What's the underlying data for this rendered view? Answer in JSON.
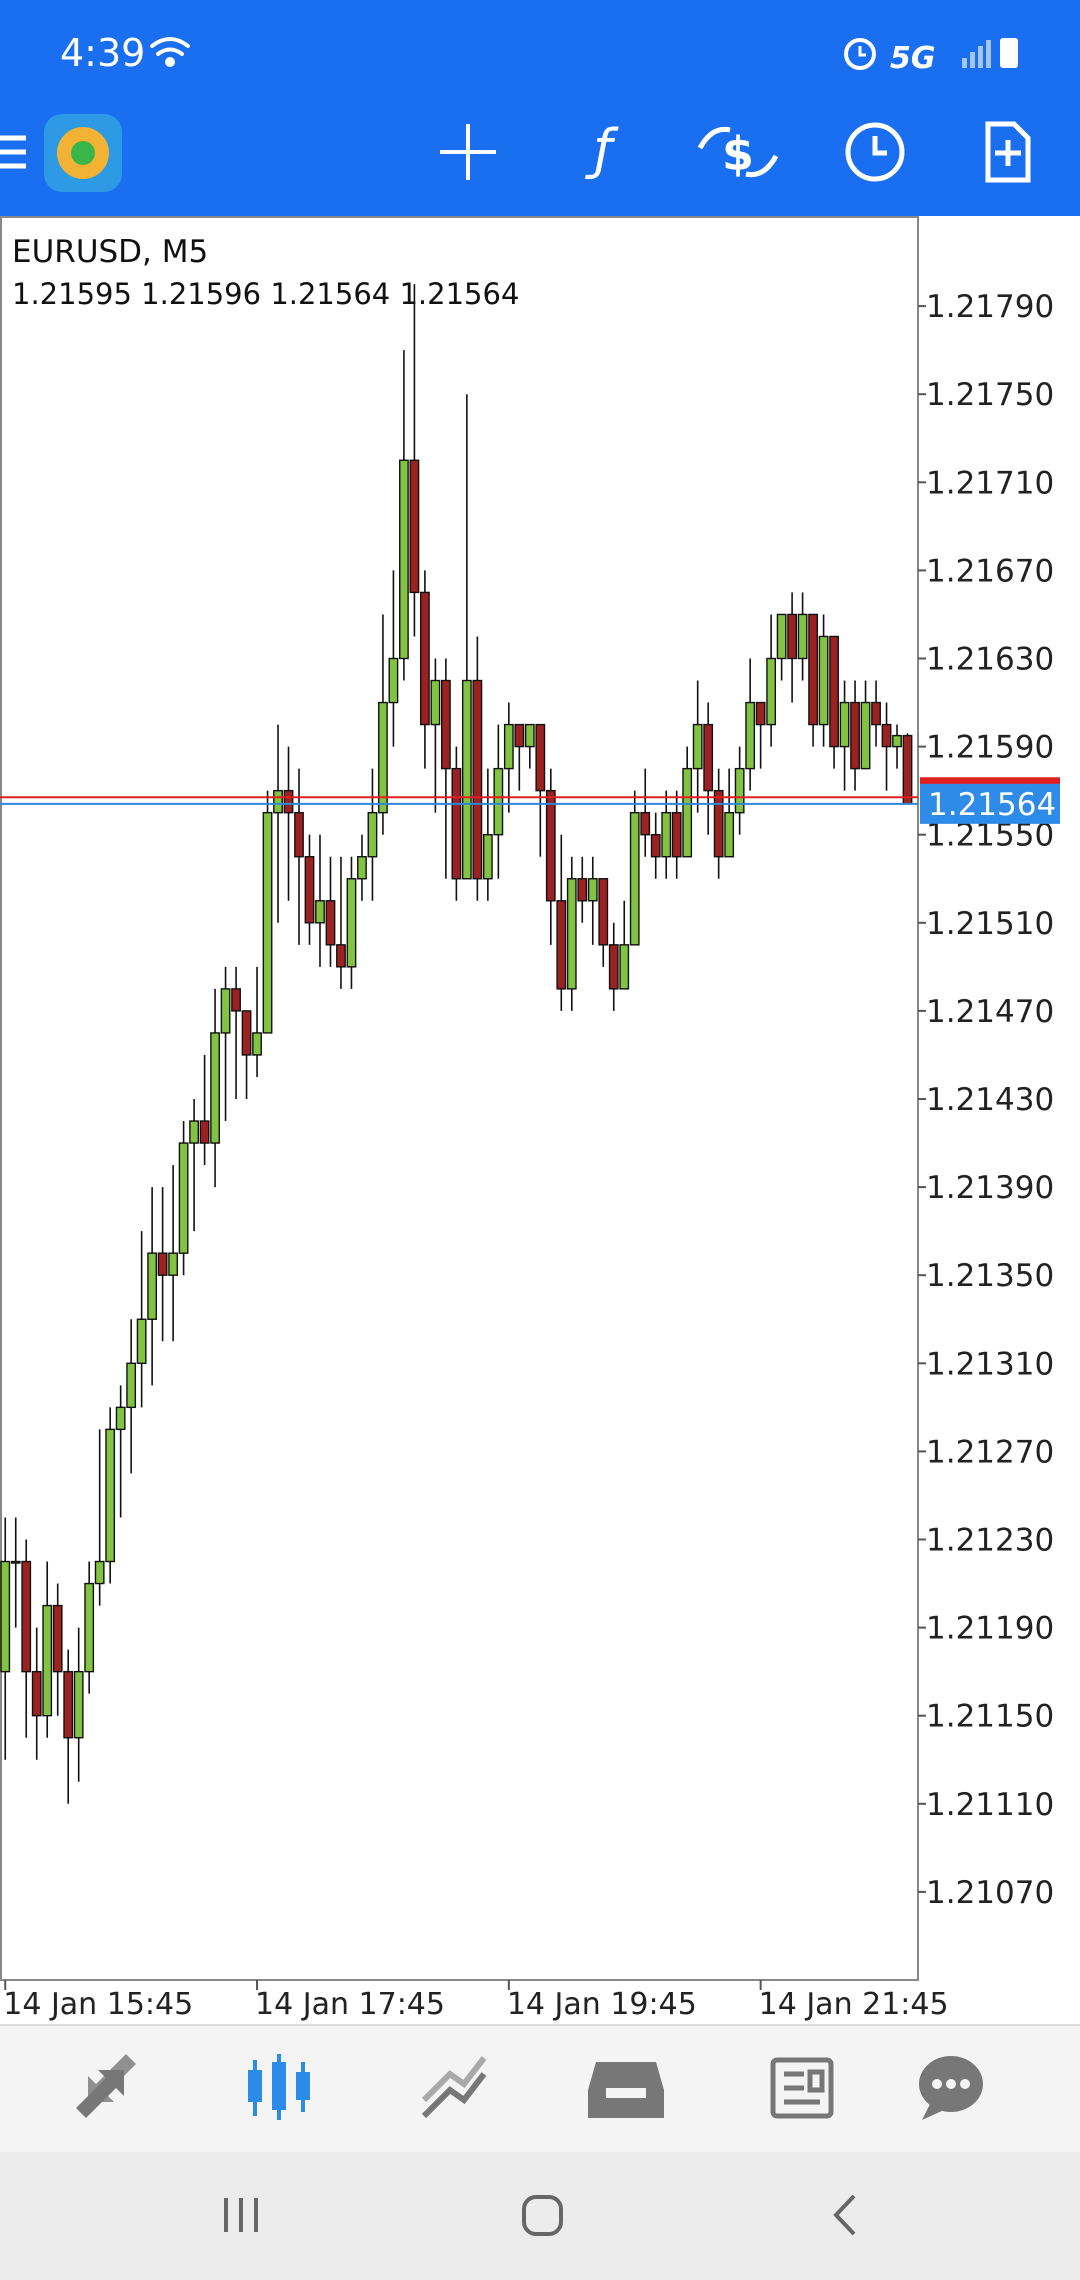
{
  "status_bar": {
    "time": "4:39",
    "network": "5G"
  },
  "chart_data": {
    "type": "candlestick",
    "title": "EURUSD, M5",
    "open": [
      1.2117,
      1.2122,
      1.2122,
      1.2117,
      1.2115,
      1.212,
      1.2117,
      1.2114,
      1.2117,
      1.2121,
      1.2122,
      1.2128,
      1.2129,
      1.2131,
      1.2133,
      1.2136,
      1.2135,
      1.2136,
      1.2141,
      1.2142,
      1.2141,
      1.2146,
      1.2148,
      1.2147,
      1.2145,
      1.2146,
      1.2156,
      1.2157,
      1.2156,
      1.2154,
      1.2151,
      1.2152,
      1.215,
      1.2149,
      1.2153,
      1.2154,
      1.2156,
      1.2161,
      1.2163,
      1.2172,
      1.2166,
      1.216,
      1.2162,
      1.2158,
      1.2153,
      1.2162,
      1.2153,
      1.2155,
      1.2158,
      1.216,
      1.2159,
      1.216,
      1.2157,
      1.2152,
      1.2148,
      1.2153,
      1.2152,
      1.2153,
      1.215,
      1.2148,
      1.215,
      1.2156,
      1.2155,
      1.2154,
      1.2156,
      1.2154,
      1.2158,
      1.216,
      1.2157,
      1.2154,
      1.2156,
      1.2158,
      1.2161,
      1.216,
      1.2163,
      1.2165,
      1.2163,
      1.2165,
      1.216,
      1.2164,
      1.2159,
      1.2161,
      1.2158,
      1.2161,
      1.216,
      1.2159,
      1.21595
    ],
    "high": [
      1.2124,
      1.2124,
      1.2123,
      1.2119,
      1.2122,
      1.2121,
      1.2118,
      1.2119,
      1.2122,
      1.2128,
      1.2129,
      1.213,
      1.2133,
      1.2137,
      1.2139,
      1.2139,
      1.214,
      1.2142,
      1.2143,
      1.2145,
      1.2148,
      1.2149,
      1.2149,
      1.2147,
      1.2149,
      1.2157,
      1.216,
      1.2159,
      1.2158,
      1.2155,
      1.2155,
      1.2154,
      1.2154,
      1.2154,
      1.2155,
      1.2158,
      1.2165,
      1.2167,
      1.2177,
      1.218,
      1.2167,
      1.2163,
      1.2163,
      1.2159,
      1.2175,
      1.2164,
      1.2158,
      1.216,
      1.2161,
      1.216,
      1.216,
      1.216,
      1.2158,
      1.2155,
      1.2154,
      1.2154,
      1.2154,
      1.2153,
      1.2151,
      1.2152,
      1.2157,
      1.2158,
      1.2156,
      1.2157,
      1.2157,
      1.2159,
      1.2162,
      1.2161,
      1.2158,
      1.2158,
      1.2159,
      1.2163,
      1.2161,
      1.2165,
      1.2165,
      1.2166,
      1.2166,
      1.2165,
      1.2165,
      1.2164,
      1.2162,
      1.2162,
      1.2162,
      1.2162,
      1.2161,
      1.216,
      1.21596
    ],
    "low": [
      1.2113,
      1.2119,
      1.2114,
      1.2113,
      1.2114,
      1.2115,
      1.2111,
      1.2112,
      1.2116,
      1.212,
      1.2121,
      1.2124,
      1.2126,
      1.2129,
      1.213,
      1.2132,
      1.2132,
      1.2135,
      1.2137,
      1.214,
      1.2139,
      1.2142,
      1.2143,
      1.2143,
      1.2144,
      1.2146,
      1.2151,
      1.2152,
      1.215,
      1.215,
      1.2149,
      1.2149,
      1.2148,
      1.2148,
      1.2152,
      1.2152,
      1.2155,
      1.2159,
      1.2162,
      1.2164,
      1.2158,
      1.2156,
      1.2153,
      1.2152,
      1.2153,
      1.2152,
      1.2152,
      1.2153,
      1.2156,
      1.2157,
      1.2158,
      1.2154,
      1.215,
      1.2147,
      1.2147,
      1.2151,
      1.215,
      1.2149,
      1.2147,
      1.2148,
      1.215,
      1.2154,
      1.2153,
      1.2153,
      1.2153,
      1.2154,
      1.2156,
      1.2155,
      1.2153,
      1.2154,
      1.2155,
      1.2157,
      1.2158,
      1.2159,
      1.2162,
      1.2161,
      1.2162,
      1.2159,
      1.2159,
      1.2158,
      1.2157,
      1.2157,
      1.2158,
      1.2159,
      1.2157,
      1.2158,
      1.21564
    ],
    "close": [
      1.2122,
      1.2122,
      1.2117,
      1.2115,
      1.212,
      1.2117,
      1.2114,
      1.2117,
      1.2121,
      1.2122,
      1.2128,
      1.2129,
      1.2131,
      1.2133,
      1.2136,
      1.2135,
      1.2136,
      1.2141,
      1.2142,
      1.2141,
      1.2146,
      1.2148,
      1.2147,
      1.2145,
      1.2146,
      1.2156,
      1.2157,
      1.2156,
      1.2154,
      1.2151,
      1.2152,
      1.215,
      1.2149,
      1.2153,
      1.2154,
      1.2156,
      1.2161,
      1.2163,
      1.2172,
      1.2166,
      1.216,
      1.2162,
      1.2158,
      1.2153,
      1.2162,
      1.2153,
      1.2155,
      1.2158,
      1.216,
      1.2159,
      1.216,
      1.2157,
      1.2152,
      1.2148,
      1.2153,
      1.2152,
      1.2153,
      1.215,
      1.2148,
      1.215,
      1.2156,
      1.2155,
      1.2154,
      1.2156,
      1.2154,
      1.2158,
      1.216,
      1.2157,
      1.2154,
      1.2156,
      1.2158,
      1.2161,
      1.216,
      1.2163,
      1.2165,
      1.2163,
      1.2165,
      1.216,
      1.2164,
      1.2159,
      1.2161,
      1.2158,
      1.2161,
      1.216,
      1.2159,
      1.21595,
      1.21564
    ],
    "ask": 1.21567,
    "up_color": "#82c341",
    "down_color": "#9c2222",
    "bid_color": "#2f86d6",
    "ask_color": "#e02020",
    "ylim": [
      1.2103,
      1.2183
    ],
    "yticks": [
      {
        "value": 1.2179,
        "label": "1.21790"
      },
      {
        "value": 1.2175,
        "label": "1.21750"
      },
      {
        "value": 1.2171,
        "label": "1.21710"
      },
      {
        "value": 1.2167,
        "label": "1.21670"
      },
      {
        "value": 1.2163,
        "label": "1.21630"
      },
      {
        "value": 1.2159,
        "label": "1.21590"
      },
      {
        "value": 1.2155,
        "label": "1.21550"
      },
      {
        "value": 1.2151,
        "label": "1.21510"
      },
      {
        "value": 1.2147,
        "label": "1.21470"
      },
      {
        "value": 1.2143,
        "label": "1.21430"
      },
      {
        "value": 1.2139,
        "label": "1.21390"
      },
      {
        "value": 1.2135,
        "label": "1.21350"
      },
      {
        "value": 1.2131,
        "label": "1.21310"
      },
      {
        "value": 1.2127,
        "label": "1.21270"
      },
      {
        "value": 1.2123,
        "label": "1.21230"
      },
      {
        "value": 1.2119,
        "label": "1.21190"
      },
      {
        "value": 1.2115,
        "label": "1.21150"
      },
      {
        "value": 1.2111,
        "label": "1.21110"
      },
      {
        "value": 1.2107,
        "label": "1.21070"
      }
    ],
    "xlim": [
      -0.5,
      87
    ],
    "xticks": [
      {
        "value": 0,
        "label": "14 Jan 15:45"
      },
      {
        "value": 24,
        "label": "14 Jan 17:45"
      },
      {
        "value": 48,
        "label": "14 Jan 19:45"
      },
      {
        "value": 72,
        "label": "14 Jan 21:45"
      }
    ]
  }
}
